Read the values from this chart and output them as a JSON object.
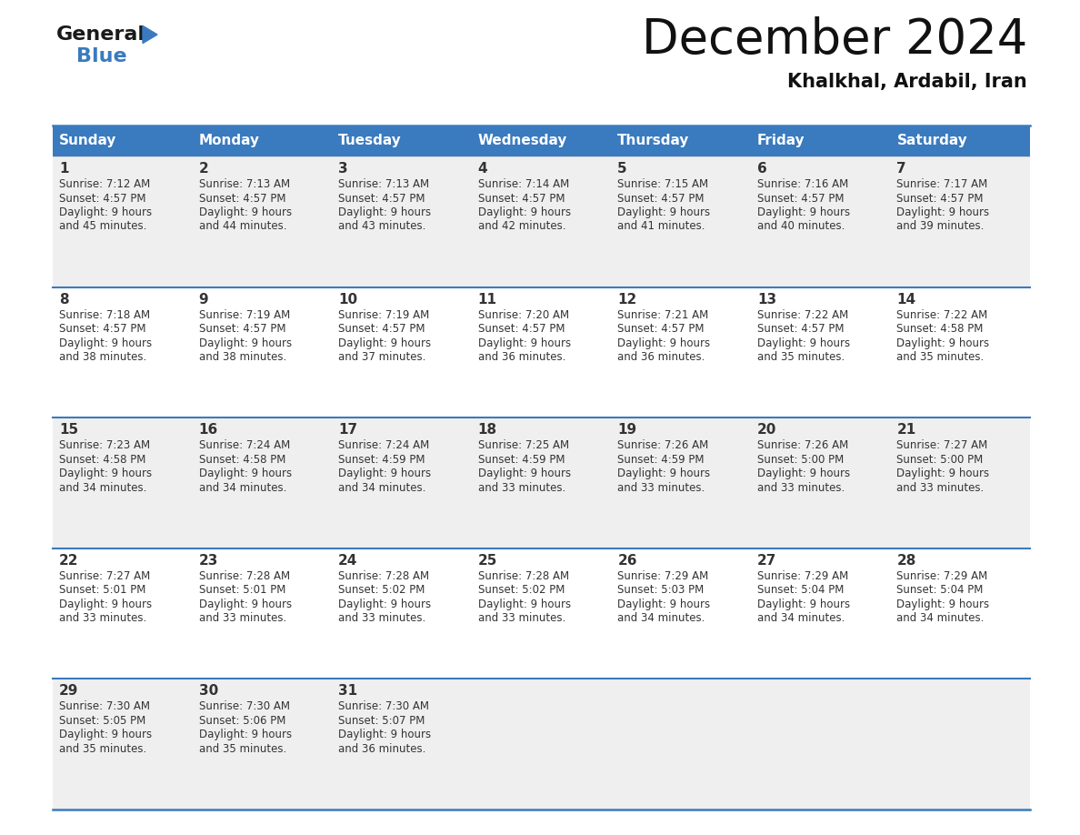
{
  "title": "December 2024",
  "subtitle": "Khalkhal, Ardabil, Iran",
  "header_color": "#3a7abf",
  "header_text_color": "#ffffff",
  "days_of_week": [
    "Sunday",
    "Monday",
    "Tuesday",
    "Wednesday",
    "Thursday",
    "Friday",
    "Saturday"
  ],
  "bg_color_odd": "#efefef",
  "bg_color_even": "#ffffff",
  "cell_border_color": "#3a7abf",
  "text_color": "#333333",
  "calendar_data": [
    [
      {
        "day": 1,
        "sunrise": "7:12 AM",
        "sunset": "4:57 PM",
        "daylight_hours": 9,
        "daylight_minutes": 45
      },
      {
        "day": 2,
        "sunrise": "7:13 AM",
        "sunset": "4:57 PM",
        "daylight_hours": 9,
        "daylight_minutes": 44
      },
      {
        "day": 3,
        "sunrise": "7:13 AM",
        "sunset": "4:57 PM",
        "daylight_hours": 9,
        "daylight_minutes": 43
      },
      {
        "day": 4,
        "sunrise": "7:14 AM",
        "sunset": "4:57 PM",
        "daylight_hours": 9,
        "daylight_minutes": 42
      },
      {
        "day": 5,
        "sunrise": "7:15 AM",
        "sunset": "4:57 PM",
        "daylight_hours": 9,
        "daylight_minutes": 41
      },
      {
        "day": 6,
        "sunrise": "7:16 AM",
        "sunset": "4:57 PM",
        "daylight_hours": 9,
        "daylight_minutes": 40
      },
      {
        "day": 7,
        "sunrise": "7:17 AM",
        "sunset": "4:57 PM",
        "daylight_hours": 9,
        "daylight_minutes": 39
      }
    ],
    [
      {
        "day": 8,
        "sunrise": "7:18 AM",
        "sunset": "4:57 PM",
        "daylight_hours": 9,
        "daylight_minutes": 38
      },
      {
        "day": 9,
        "sunrise": "7:19 AM",
        "sunset": "4:57 PM",
        "daylight_hours": 9,
        "daylight_minutes": 38
      },
      {
        "day": 10,
        "sunrise": "7:19 AM",
        "sunset": "4:57 PM",
        "daylight_hours": 9,
        "daylight_minutes": 37
      },
      {
        "day": 11,
        "sunrise": "7:20 AM",
        "sunset": "4:57 PM",
        "daylight_hours": 9,
        "daylight_minutes": 36
      },
      {
        "day": 12,
        "sunrise": "7:21 AM",
        "sunset": "4:57 PM",
        "daylight_hours": 9,
        "daylight_minutes": 36
      },
      {
        "day": 13,
        "sunrise": "7:22 AM",
        "sunset": "4:57 PM",
        "daylight_hours": 9,
        "daylight_minutes": 35
      },
      {
        "day": 14,
        "sunrise": "7:22 AM",
        "sunset": "4:58 PM",
        "daylight_hours": 9,
        "daylight_minutes": 35
      }
    ],
    [
      {
        "day": 15,
        "sunrise": "7:23 AM",
        "sunset": "4:58 PM",
        "daylight_hours": 9,
        "daylight_minutes": 34
      },
      {
        "day": 16,
        "sunrise": "7:24 AM",
        "sunset": "4:58 PM",
        "daylight_hours": 9,
        "daylight_minutes": 34
      },
      {
        "day": 17,
        "sunrise": "7:24 AM",
        "sunset": "4:59 PM",
        "daylight_hours": 9,
        "daylight_minutes": 34
      },
      {
        "day": 18,
        "sunrise": "7:25 AM",
        "sunset": "4:59 PM",
        "daylight_hours": 9,
        "daylight_minutes": 33
      },
      {
        "day": 19,
        "sunrise": "7:26 AM",
        "sunset": "4:59 PM",
        "daylight_hours": 9,
        "daylight_minutes": 33
      },
      {
        "day": 20,
        "sunrise": "7:26 AM",
        "sunset": "5:00 PM",
        "daylight_hours": 9,
        "daylight_minutes": 33
      },
      {
        "day": 21,
        "sunrise": "7:27 AM",
        "sunset": "5:00 PM",
        "daylight_hours": 9,
        "daylight_minutes": 33
      }
    ],
    [
      {
        "day": 22,
        "sunrise": "7:27 AM",
        "sunset": "5:01 PM",
        "daylight_hours": 9,
        "daylight_minutes": 33
      },
      {
        "day": 23,
        "sunrise": "7:28 AM",
        "sunset": "5:01 PM",
        "daylight_hours": 9,
        "daylight_minutes": 33
      },
      {
        "day": 24,
        "sunrise": "7:28 AM",
        "sunset": "5:02 PM",
        "daylight_hours": 9,
        "daylight_minutes": 33
      },
      {
        "day": 25,
        "sunrise": "7:28 AM",
        "sunset": "5:02 PM",
        "daylight_hours": 9,
        "daylight_minutes": 33
      },
      {
        "day": 26,
        "sunrise": "7:29 AM",
        "sunset": "5:03 PM",
        "daylight_hours": 9,
        "daylight_minutes": 34
      },
      {
        "day": 27,
        "sunrise": "7:29 AM",
        "sunset": "5:04 PM",
        "daylight_hours": 9,
        "daylight_minutes": 34
      },
      {
        "day": 28,
        "sunrise": "7:29 AM",
        "sunset": "5:04 PM",
        "daylight_hours": 9,
        "daylight_minutes": 34
      }
    ],
    [
      {
        "day": 29,
        "sunrise": "7:30 AM",
        "sunset": "5:05 PM",
        "daylight_hours": 9,
        "daylight_minutes": 35
      },
      {
        "day": 30,
        "sunrise": "7:30 AM",
        "sunset": "5:06 PM",
        "daylight_hours": 9,
        "daylight_minutes": 35
      },
      {
        "day": 31,
        "sunrise": "7:30 AM",
        "sunset": "5:07 PM",
        "daylight_hours": 9,
        "daylight_minutes": 36
      },
      null,
      null,
      null,
      null
    ]
  ],
  "logo_text_general": "General",
  "logo_text_blue": "Blue",
  "logo_color_general": "#1a1a1a",
  "logo_color_blue": "#3a7abf",
  "fig_width": 11.88,
  "fig_height": 9.18,
  "dpi": 100
}
